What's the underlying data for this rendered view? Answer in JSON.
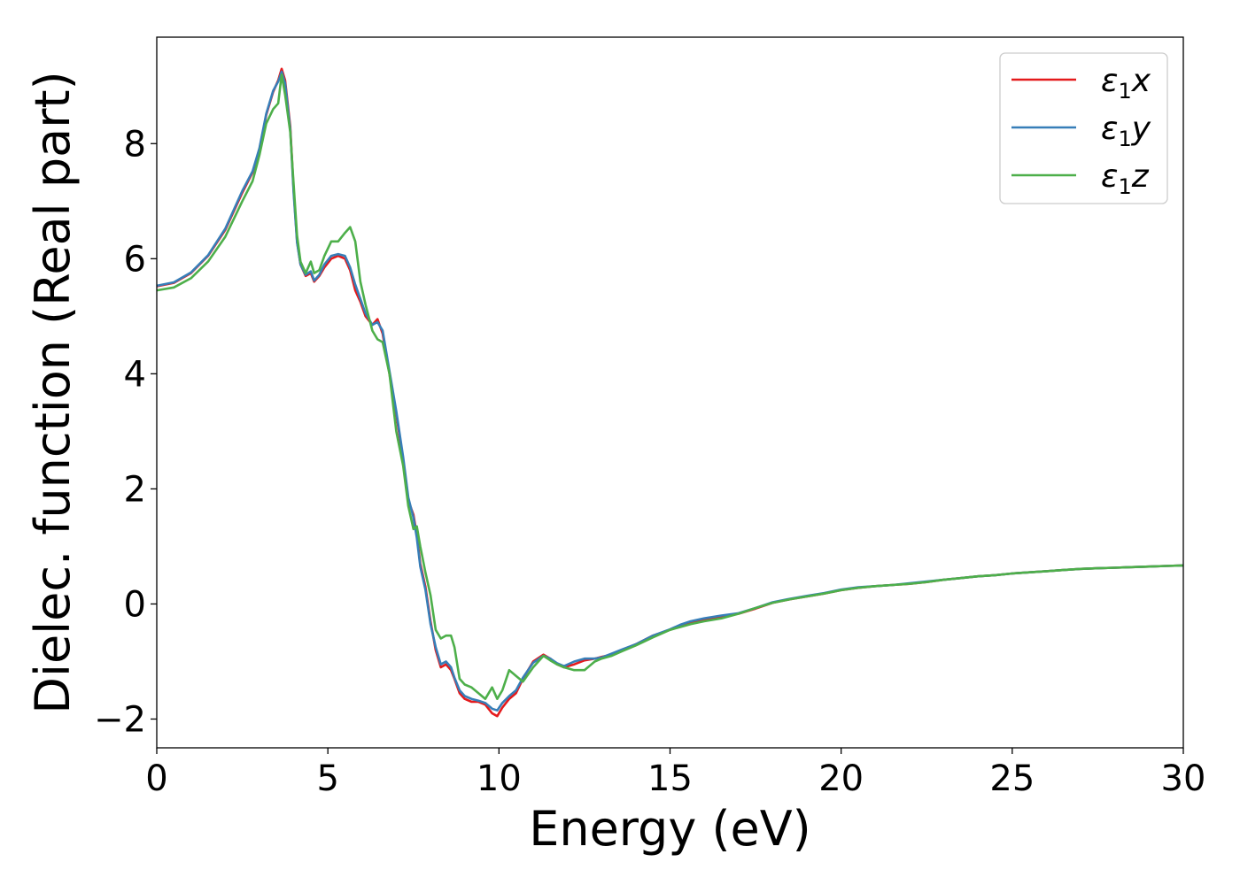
{
  "chart_data": {
    "type": "line",
    "xlabel": "Energy (eV)",
    "ylabel": "Dielec. function (Real part)",
    "xlim": [
      0,
      30
    ],
    "ylim": [
      -2.5,
      9.85
    ],
    "xticks": [
      0,
      5,
      10,
      15,
      20,
      25,
      30
    ],
    "xtick_labels": [
      "0",
      "5",
      "10",
      "15",
      "20",
      "25",
      "30"
    ],
    "yticks": [
      -2,
      0,
      2,
      4,
      6,
      8
    ],
    "ytick_labels": [
      "−2",
      "0",
      "2",
      "4",
      "6",
      "8"
    ],
    "grid": false,
    "legend_position": "top-right",
    "series": [
      {
        "name": "ε1x",
        "color": "#e41a1c",
        "x": [
          0,
          0.5,
          1,
          1.5,
          2,
          2.5,
          2.8,
          3.0,
          3.2,
          3.4,
          3.55,
          3.65,
          3.75,
          3.9,
          4.0,
          4.1,
          4.2,
          4.35,
          4.5,
          4.6,
          4.75,
          4.9,
          5.1,
          5.3,
          5.5,
          5.65,
          5.8,
          5.95,
          6.1,
          6.3,
          6.45,
          6.6,
          6.8,
          7.0,
          7.2,
          7.35,
          7.5,
          7.6,
          7.7,
          7.85,
          8.0,
          8.15,
          8.3,
          8.45,
          8.6,
          8.7,
          8.85,
          9.0,
          9.2,
          9.4,
          9.6,
          9.8,
          9.95,
          10.1,
          10.3,
          10.5,
          10.7,
          11.0,
          11.3,
          11.5,
          11.7,
          11.9,
          12.2,
          12.5,
          12.8,
          13.0,
          13.3,
          13.6,
          14.0,
          14.5,
          15.0,
          15.3,
          15.6,
          16.0,
          16.5,
          17.0,
          17.5,
          18.0,
          18.5,
          19.0,
          19.5,
          20.0,
          20.5,
          21.0,
          21.5,
          22.0,
          22.5,
          23.0,
          23.5,
          24.0,
          24.5,
          25.0,
          25.5,
          26.0,
          26.5,
          27.0,
          27.5,
          28.0,
          28.5,
          29.0,
          29.5,
          30.0
        ],
        "y": [
          5.52,
          5.58,
          5.75,
          6.05,
          6.5,
          7.15,
          7.5,
          7.9,
          8.5,
          8.9,
          9.1,
          9.3,
          9.1,
          8.3,
          7.2,
          6.3,
          5.9,
          5.7,
          5.75,
          5.6,
          5.7,
          5.85,
          6.0,
          6.05,
          6.0,
          5.8,
          5.45,
          5.25,
          5.0,
          4.85,
          4.95,
          4.7,
          4.0,
          3.3,
          2.5,
          1.8,
          1.55,
          1.2,
          0.7,
          0.3,
          -0.3,
          -0.8,
          -1.1,
          -1.05,
          -1.15,
          -1.3,
          -1.55,
          -1.65,
          -1.7,
          -1.7,
          -1.75,
          -1.9,
          -1.95,
          -1.8,
          -1.65,
          -1.55,
          -1.3,
          -1.0,
          -0.88,
          -0.95,
          -1.05,
          -1.1,
          -1.05,
          -0.98,
          -0.95,
          -0.92,
          -0.88,
          -0.8,
          -0.7,
          -0.55,
          -0.45,
          -0.38,
          -0.32,
          -0.27,
          -0.22,
          -0.17,
          -0.08,
          0.02,
          0.08,
          0.13,
          0.18,
          0.24,
          0.28,
          0.31,
          0.33,
          0.35,
          0.38,
          0.42,
          0.45,
          0.48,
          0.5,
          0.53,
          0.55,
          0.57,
          0.59,
          0.61,
          0.62,
          0.63,
          0.64,
          0.65,
          0.66,
          0.67
        ]
      },
      {
        "name": "ε1y",
        "color": "#377eb8",
        "x": [
          0,
          0.5,
          1,
          1.5,
          2,
          2.5,
          2.8,
          3.0,
          3.2,
          3.4,
          3.55,
          3.65,
          3.75,
          3.9,
          4.0,
          4.1,
          4.2,
          4.35,
          4.5,
          4.6,
          4.75,
          4.9,
          5.1,
          5.3,
          5.5,
          5.65,
          5.8,
          5.95,
          6.1,
          6.3,
          6.45,
          6.6,
          6.8,
          7.0,
          7.2,
          7.35,
          7.5,
          7.6,
          7.7,
          7.85,
          8.0,
          8.15,
          8.3,
          8.45,
          8.6,
          8.7,
          8.85,
          9.0,
          9.2,
          9.4,
          9.6,
          9.8,
          9.95,
          10.1,
          10.3,
          10.5,
          10.7,
          11.0,
          11.3,
          11.5,
          11.7,
          11.9,
          12.2,
          12.5,
          12.8,
          13.0,
          13.3,
          13.6,
          14.0,
          14.5,
          15.0,
          15.3,
          15.6,
          16.0,
          16.5,
          17.0,
          17.5,
          18.0,
          18.5,
          19.0,
          19.5,
          20.0,
          20.5,
          21.0,
          21.5,
          22.0,
          22.5,
          23.0,
          23.5,
          24.0,
          24.5,
          25.0,
          25.5,
          26.0,
          26.5,
          27.0,
          27.5,
          28.0,
          28.5,
          29.0,
          29.5,
          30.0
        ],
        "y": [
          5.53,
          5.59,
          5.76,
          6.06,
          6.52,
          7.18,
          7.52,
          7.92,
          8.52,
          8.92,
          9.08,
          9.25,
          9.05,
          8.25,
          7.15,
          6.28,
          5.9,
          5.72,
          5.78,
          5.62,
          5.72,
          5.9,
          6.05,
          6.08,
          6.05,
          5.85,
          5.55,
          5.3,
          5.05,
          4.85,
          4.9,
          4.75,
          4.05,
          3.35,
          2.55,
          1.85,
          1.5,
          1.15,
          0.65,
          0.25,
          -0.35,
          -0.75,
          -1.05,
          -1.0,
          -1.1,
          -1.28,
          -1.5,
          -1.6,
          -1.65,
          -1.68,
          -1.72,
          -1.82,
          -1.85,
          -1.72,
          -1.6,
          -1.5,
          -1.28,
          -1.02,
          -0.9,
          -0.95,
          -1.03,
          -1.08,
          -1.0,
          -0.95,
          -0.95,
          -0.93,
          -0.86,
          -0.79,
          -0.7,
          -0.55,
          -0.44,
          -0.36,
          -0.3,
          -0.25,
          -0.2,
          -0.16,
          -0.07,
          0.03,
          0.09,
          0.14,
          0.19,
          0.25,
          0.29,
          0.31,
          0.33,
          0.36,
          0.39,
          0.42,
          0.45,
          0.48,
          0.5,
          0.53,
          0.55,
          0.57,
          0.59,
          0.61,
          0.62,
          0.63,
          0.64,
          0.65,
          0.66,
          0.67
        ]
      },
      {
        "name": "ε1z",
        "color": "#4daf4a",
        "x": [
          0,
          0.5,
          1,
          1.5,
          2,
          2.5,
          2.8,
          3.0,
          3.2,
          3.4,
          3.55,
          3.65,
          3.75,
          3.9,
          4.0,
          4.1,
          4.2,
          4.35,
          4.5,
          4.6,
          4.75,
          4.9,
          5.1,
          5.3,
          5.5,
          5.65,
          5.8,
          5.95,
          6.1,
          6.3,
          6.45,
          6.6,
          6.8,
          7.0,
          7.2,
          7.35,
          7.5,
          7.6,
          7.7,
          7.85,
          8.0,
          8.15,
          8.3,
          8.45,
          8.6,
          8.7,
          8.85,
          9.0,
          9.2,
          9.4,
          9.6,
          9.8,
          9.95,
          10.1,
          10.3,
          10.5,
          10.7,
          11.0,
          11.3,
          11.5,
          11.7,
          11.9,
          12.2,
          12.5,
          12.8,
          13.0,
          13.3,
          13.6,
          14.0,
          14.5,
          15.0,
          15.3,
          15.6,
          16.0,
          16.5,
          17.0,
          17.5,
          18.0,
          18.5,
          19.0,
          19.5,
          20.0,
          20.5,
          21.0,
          21.5,
          22.0,
          22.5,
          23.0,
          23.5,
          24.0,
          24.5,
          25.0,
          25.5,
          26.0,
          26.5,
          27.0,
          27.5,
          28.0,
          28.5,
          29.0,
          29.5,
          30.0
        ],
        "y": [
          5.45,
          5.5,
          5.66,
          5.95,
          6.38,
          7.0,
          7.35,
          7.8,
          8.35,
          8.6,
          8.7,
          9.2,
          8.85,
          8.2,
          7.3,
          6.4,
          5.95,
          5.75,
          5.95,
          5.75,
          5.8,
          6.05,
          6.3,
          6.3,
          6.45,
          6.55,
          6.3,
          5.6,
          5.2,
          4.75,
          4.6,
          4.55,
          4.0,
          3.0,
          2.4,
          1.7,
          1.3,
          1.35,
          1.0,
          0.55,
          0.15,
          -0.45,
          -0.6,
          -0.55,
          -0.55,
          -0.75,
          -1.3,
          -1.4,
          -1.45,
          -1.55,
          -1.65,
          -1.45,
          -1.65,
          -1.5,
          -1.15,
          -1.25,
          -1.35,
          -1.1,
          -0.9,
          -0.98,
          -1.05,
          -1.1,
          -1.15,
          -1.15,
          -1.0,
          -0.95,
          -0.9,
          -0.82,
          -0.72,
          -0.58,
          -0.45,
          -0.4,
          -0.35,
          -0.3,
          -0.25,
          -0.17,
          -0.07,
          0.02,
          0.08,
          0.13,
          0.18,
          0.24,
          0.28,
          0.31,
          0.33,
          0.35,
          0.38,
          0.42,
          0.45,
          0.48,
          0.5,
          0.53,
          0.55,
          0.57,
          0.59,
          0.61,
          0.62,
          0.63,
          0.64,
          0.65,
          0.66,
          0.67
        ]
      }
    ]
  }
}
